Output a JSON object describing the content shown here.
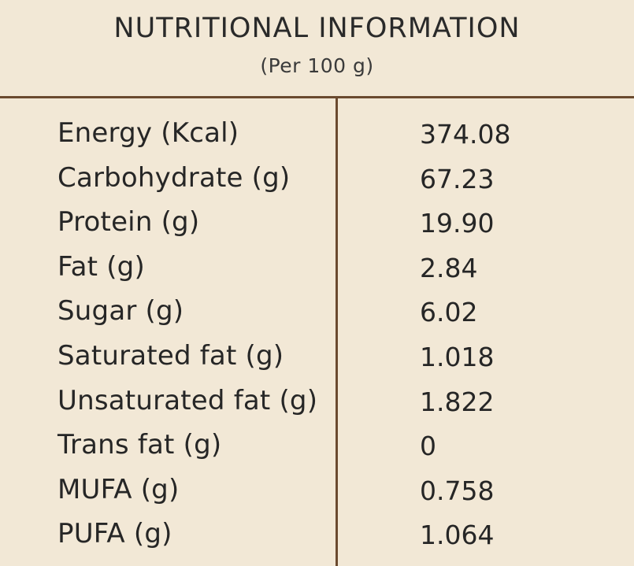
{
  "header": {
    "title": "NUTRITIONAL INFORMATION",
    "subtitle": "(Per 100 g)"
  },
  "colors": {
    "background": "#f2e8d6",
    "divider": "#6b4a2f",
    "text": "#262626"
  },
  "rows": [
    {
      "label": "Energy (Kcal)",
      "value": "374.08"
    },
    {
      "label": "Carbohydrate (g)",
      "value": "67.23"
    },
    {
      "label": "Protein (g)",
      "value": "19.90"
    },
    {
      "label": "Fat (g)",
      "value": "2.84"
    },
    {
      "label": "Sugar (g)",
      "value": "6.02"
    },
    {
      "label": "Saturated fat (g)",
      "value": "1.018"
    },
    {
      "label": "Unsaturated fat (g)",
      "value": "1.822"
    },
    {
      "label": "Trans fat (g)",
      "value": "0"
    },
    {
      "label": "MUFA (g)",
      "value": "0.758"
    },
    {
      "label": "PUFA (g)",
      "value": "1.064"
    }
  ]
}
